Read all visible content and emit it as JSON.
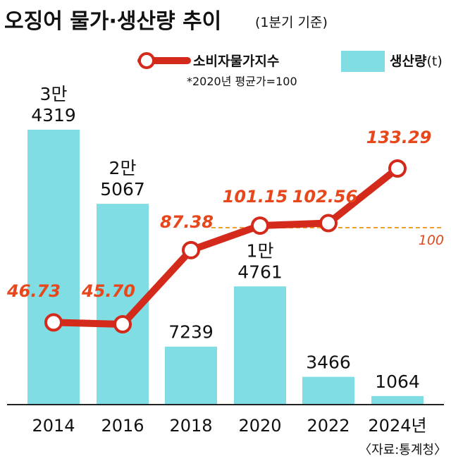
{
  "title": "오징어 물가·생산량 추이",
  "subtitle": "(1분기 기준)",
  "legend": {
    "line": "소비자물가지수",
    "bar": "생산량",
    "bar_unit": "(t)",
    "note": "*2020년 평균가=100"
  },
  "source": "〈자료:통계청〉",
  "colors": {
    "bar": "#7fdde3",
    "line": "#d42a1b",
    "label": "#e8461b",
    "ref": "#f0a030"
  },
  "chart_data": {
    "type": "bar+line",
    "categories": [
      "2014",
      "2016",
      "2018",
      "2020",
      "2022",
      "2024년"
    ],
    "series": [
      {
        "name": "생산량",
        "type": "bar",
        "values": [
          34319,
          25067,
          7239,
          14761,
          3466,
          1064
        ],
        "labels": [
          [
            "3만",
            "4319"
          ],
          [
            "2만",
            "5067"
          ],
          [
            "7239"
          ],
          [
            "1만",
            "4761"
          ],
          [
            "3466"
          ],
          [
            "1064"
          ]
        ]
      },
      {
        "name": "소비자물가지수",
        "type": "line",
        "values": [
          46.73,
          45.7,
          87.38,
          101.15,
          102.56,
          133.29
        ],
        "labels": [
          "46.73",
          "45.70",
          "87.38",
          "101.15",
          "102.56",
          "133.29"
        ]
      }
    ],
    "reference_line": {
      "value": 100,
      "label": "100"
    },
    "legend_position": "top-right",
    "grid": false
  }
}
